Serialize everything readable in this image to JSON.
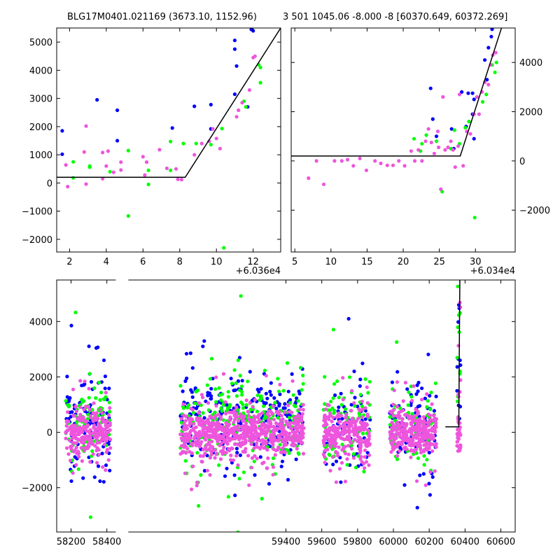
{
  "colors": {
    "blue": "#0000ff",
    "green": "#00ff00",
    "magenta": "#ee55dd",
    "model": "#000000"
  },
  "chart_data": [
    {
      "type": "scatter",
      "title": "BLG17M0401.021169 (3673.10, 1152.96)",
      "xlim": [
        1.3,
        13.5
      ],
      "ylim": [
        -2450,
        5500
      ],
      "x_offset_label": "+6.036e4",
      "xticks": [
        2,
        4,
        6,
        8,
        10,
        12
      ],
      "yticks": [
        -2000,
        -1000,
        0,
        1000,
        2000,
        3000,
        4000,
        5000
      ],
      "model": [
        [
          1.3,
          200
        ],
        [
          8.3,
          200
        ],
        [
          13.5,
          5500
        ]
      ],
      "series": [
        {
          "color": "blue",
          "points": [
            [
              1.6,
              1850
            ],
            [
              1.6,
              1020
            ],
            [
              3.5,
              2950
            ],
            [
              4.6,
              2580
            ],
            [
              4.6,
              1500
            ],
            [
              7.6,
              1950
            ],
            [
              8.8,
              2720
            ],
            [
              9.7,
              2780
            ],
            [
              9.7,
              1920
            ],
            [
              11.0,
              5060
            ],
            [
              11.0,
              4750
            ],
            [
              11.1,
              4150
            ],
            [
              11.0,
              3150
            ],
            [
              11.7,
              2700
            ],
            [
              11.9,
              5450
            ],
            [
              12.0,
              5400
            ]
          ]
        },
        {
          "color": "green",
          "points": [
            [
              2.2,
              750
            ],
            [
              2.2,
              180
            ],
            [
              3.1,
              560
            ],
            [
              3.1,
              600
            ],
            [
              4.2,
              400
            ],
            [
              5.2,
              1150
            ],
            [
              5.2,
              -1170
            ],
            [
              6.3,
              450
            ],
            [
              6.3,
              -50
            ],
            [
              7.5,
              1470
            ],
            [
              7.5,
              450
            ],
            [
              8.2,
              1400
            ],
            [
              8.9,
              1400
            ],
            [
              9.7,
              1360
            ],
            [
              10.3,
              1930
            ],
            [
              10.4,
              -2300
            ],
            [
              11.5,
              2900
            ],
            [
              11.6,
              2700
            ],
            [
              12.4,
              3560
            ],
            [
              12.3,
              4200
            ],
            [
              12.4,
              4100
            ]
          ]
        },
        {
          "color": "magenta",
          "points": [
            [
              1.8,
              640
            ],
            [
              1.9,
              -130
            ],
            [
              2.9,
              2020
            ],
            [
              2.8,
              1100
            ],
            [
              2.9,
              -40
            ],
            [
              3.8,
              1080
            ],
            [
              3.8,
              150
            ],
            [
              4.0,
              600
            ],
            [
              4.1,
              1130
            ],
            [
              4.4,
              380
            ],
            [
              4.8,
              740
            ],
            [
              4.8,
              460
            ],
            [
              6.0,
              930
            ],
            [
              6.2,
              740
            ],
            [
              6.1,
              280
            ],
            [
              6.9,
              1180
            ],
            [
              7.3,
              520
            ],
            [
              7.8,
              500
            ],
            [
              7.9,
              130
            ],
            [
              8.1,
              120
            ],
            [
              8.8,
              1000
            ],
            [
              9.2,
              1400
            ],
            [
              9.6,
              1480
            ],
            [
              9.8,
              1920
            ],
            [
              10.0,
              1580
            ],
            [
              10.2,
              1220
            ],
            [
              11.1,
              2350
            ],
            [
              11.2,
              2580
            ],
            [
              11.4,
              2850
            ],
            [
              11.8,
              3300
            ],
            [
              12.0,
              4450
            ],
            [
              12.1,
              4500
            ]
          ]
        }
      ]
    },
    {
      "type": "scatter",
      "title": "3 501 1045.06 -8.000 -8 [60370.649, 60372.269]",
      "xlim": [
        4.5,
        35.5
      ],
      "ylim": [
        -3700,
        5400
      ],
      "x_offset_label": "+6.034e4",
      "xticks": [
        5,
        10,
        15,
        20,
        25,
        30
      ],
      "yticks": [
        -2000,
        0,
        2000,
        4000
      ],
      "y_axis_side": "right",
      "model": [
        [
          4.5,
          200
        ],
        [
          27.9,
          200
        ],
        [
          33.6,
          5400
        ]
      ],
      "series": [
        {
          "color": "blue",
          "points": [
            [
              23.8,
              2950
            ],
            [
              24.1,
              1700
            ],
            [
              24.6,
              1000
            ],
            [
              26.7,
              1300
            ],
            [
              27.0,
              500
            ],
            [
              28.1,
              2800
            ],
            [
              28.7,
              1400
            ],
            [
              29.0,
              2750
            ],
            [
              29.6,
              2750
            ],
            [
              29.6,
              1900
            ],
            [
              29.8,
              2500
            ],
            [
              29.8,
              900
            ],
            [
              31.3,
              4100
            ],
            [
              31.6,
              3300
            ],
            [
              31.8,
              4600
            ],
            [
              32.2,
              5050
            ],
            [
              32.3,
              5350
            ]
          ]
        },
        {
          "color": "green",
          "points": [
            [
              21.5,
              900
            ],
            [
              22.4,
              400
            ],
            [
              22.6,
              700
            ],
            [
              23.2,
              1050
            ],
            [
              24.6,
              800
            ],
            [
              25.4,
              -1250
            ],
            [
              26.6,
              500
            ],
            [
              27.1,
              1250
            ],
            [
              27.8,
              700
            ],
            [
              28.6,
              1350
            ],
            [
              29.1,
              1600
            ],
            [
              29.9,
              -2300
            ],
            [
              31.0,
              2400
            ],
            [
              31.5,
              2700
            ],
            [
              32.3,
              3900
            ],
            [
              32.7,
              3600
            ],
            [
              32.9,
              4000
            ]
          ]
        },
        {
          "color": "magenta",
          "points": [
            [
              6.9,
              -700
            ],
            [
              8.0,
              0
            ],
            [
              9.0,
              -950
            ],
            [
              10.5,
              0
            ],
            [
              11.5,
              0
            ],
            [
              12.3,
              50
            ],
            [
              13.1,
              -200
            ],
            [
              14.0,
              100
            ],
            [
              14.9,
              -380
            ],
            [
              16.1,
              0
            ],
            [
              16.9,
              -100
            ],
            [
              17.8,
              -180
            ],
            [
              18.6,
              -180
            ],
            [
              19.4,
              0
            ],
            [
              20.2,
              -200
            ],
            [
              21.1,
              400
            ],
            [
              21.6,
              0
            ],
            [
              22.1,
              450
            ],
            [
              22.6,
              0
            ],
            [
              23.1,
              800
            ],
            [
              23.5,
              1300
            ],
            [
              23.9,
              750
            ],
            [
              24.3,
              300
            ],
            [
              24.8,
              1200
            ],
            [
              24.9,
              550
            ],
            [
              25.2,
              -1150
            ],
            [
              25.5,
              2600
            ],
            [
              25.8,
              450
            ],
            [
              26.2,
              550
            ],
            [
              26.6,
              800
            ],
            [
              26.9,
              450
            ],
            [
              27.2,
              -250
            ],
            [
              27.6,
              600
            ],
            [
              27.8,
              2700
            ],
            [
              28.3,
              -200
            ],
            [
              28.8,
              1200
            ],
            [
              29.3,
              1100
            ],
            [
              29.8,
              1900
            ],
            [
              30.2,
              2600
            ],
            [
              30.5,
              1900
            ],
            [
              30.9,
              2800
            ],
            [
              31.3,
              3200
            ],
            [
              31.8,
              3100
            ],
            [
              32.1,
              3900
            ],
            [
              32.4,
              4300
            ],
            [
              32.8,
              4400
            ]
          ]
        }
      ]
    },
    {
      "type": "scatter",
      "title": "",
      "xlim": [
        58120,
        60680
      ],
      "ylim": [
        -3600,
        5500
      ],
      "xticks": [
        58200,
        58400,
        59400,
        59600,
        59800,
        60000,
        60200,
        60400,
        60600
      ],
      "yticks": [
        -2000,
        0,
        2000,
        4000
      ],
      "model": [
        [
          60290,
          200
        ],
        [
          60365,
          200
        ],
        [
          60371,
          5500
        ]
      ],
      "seasons": [
        [
          58170,
          58420
        ],
        [
          58810,
          59500
        ],
        [
          59610,
          59870
        ],
        [
          59980,
          60240
        ],
        [
          60340,
          60380
        ]
      ],
      "counts": {
        "magenta": 1500,
        "blue": 520,
        "green": 460
      },
      "spreads": {
        "magenta": [
          380,
          900
        ],
        "blue": [
          700,
          1600
        ],
        "green": [
          700,
          1600
        ]
      },
      "axis_gaps": [
        [
          58450,
          58520
        ]
      ],
      "series": [
        {
          "color": "magenta",
          "name": ""
        },
        {
          "color": "blue",
          "name": ""
        },
        {
          "color": "green",
          "name": ""
        }
      ]
    }
  ]
}
